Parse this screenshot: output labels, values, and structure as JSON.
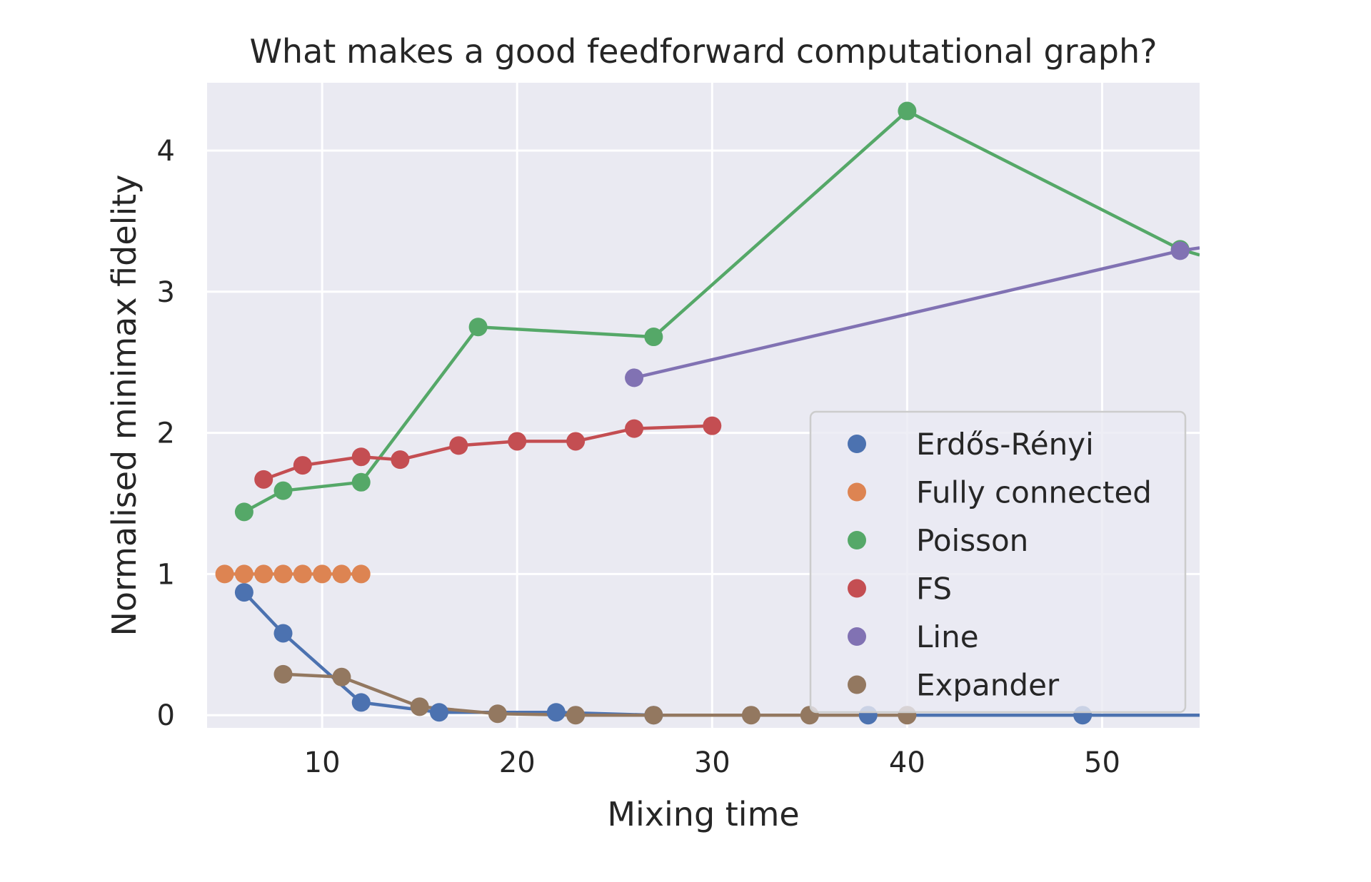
{
  "chart_data": {
    "type": "line",
    "title": "What makes a good feedforward computational graph?",
    "xlabel": "Mixing time",
    "ylabel": "Normalised minimax fidelity",
    "xlim": [
      4.1,
      55
    ],
    "ylim": [
      -0.09,
      4.48
    ],
    "xticks": [
      10,
      20,
      30,
      40,
      50
    ],
    "yticks": [
      0,
      1,
      2,
      3,
      4
    ],
    "grid": true,
    "legend_position": "center-right",
    "series": [
      {
        "name": "Erdős-Rényi",
        "color": "#4c72b0",
        "points": [
          [
            6,
            0.87
          ],
          [
            8,
            0.58
          ],
          [
            12,
            0.09
          ],
          [
            16,
            0.02
          ],
          [
            22,
            0.02
          ],
          [
            27,
            0.0
          ],
          [
            38,
            0.0
          ],
          [
            49,
            0.0
          ],
          [
            55,
            0.0
          ]
        ]
      },
      {
        "name": "Fully connected",
        "color": "#dd8452",
        "points": [
          [
            5,
            1.0
          ],
          [
            6,
            1.0
          ],
          [
            7,
            1.0
          ],
          [
            8,
            1.0
          ],
          [
            9,
            1.0
          ],
          [
            10,
            1.0
          ],
          [
            11,
            1.0
          ],
          [
            12,
            1.0
          ]
        ]
      },
      {
        "name": "Poisson",
        "color": "#55a868",
        "points": [
          [
            6,
            1.44
          ],
          [
            8,
            1.59
          ],
          [
            12,
            1.65
          ],
          [
            18,
            2.75
          ],
          [
            27,
            2.68
          ],
          [
            40,
            4.28
          ],
          [
            54,
            3.3
          ],
          [
            55,
            3.26
          ]
        ]
      },
      {
        "name": "FS",
        "color": "#c44e52",
        "points": [
          [
            7,
            1.67
          ],
          [
            9,
            1.77
          ],
          [
            12,
            1.83
          ],
          [
            14,
            1.81
          ],
          [
            17,
            1.91
          ],
          [
            20,
            1.94
          ],
          [
            23,
            1.94
          ],
          [
            26,
            2.03
          ],
          [
            30,
            2.05
          ]
        ]
      },
      {
        "name": "Line",
        "color": "#8172b3",
        "points": [
          [
            26,
            2.39
          ],
          [
            54,
            3.29
          ],
          [
            55,
            3.31
          ]
        ]
      },
      {
        "name": "Expander",
        "color": "#937860",
        "points": [
          [
            8,
            0.29
          ],
          [
            11,
            0.27
          ],
          [
            15,
            0.06
          ],
          [
            19,
            0.01
          ],
          [
            23,
            0.0
          ],
          [
            27,
            0.0
          ],
          [
            32,
            0.0
          ],
          [
            35,
            0.0
          ],
          [
            40,
            0.0
          ]
        ]
      }
    ]
  }
}
